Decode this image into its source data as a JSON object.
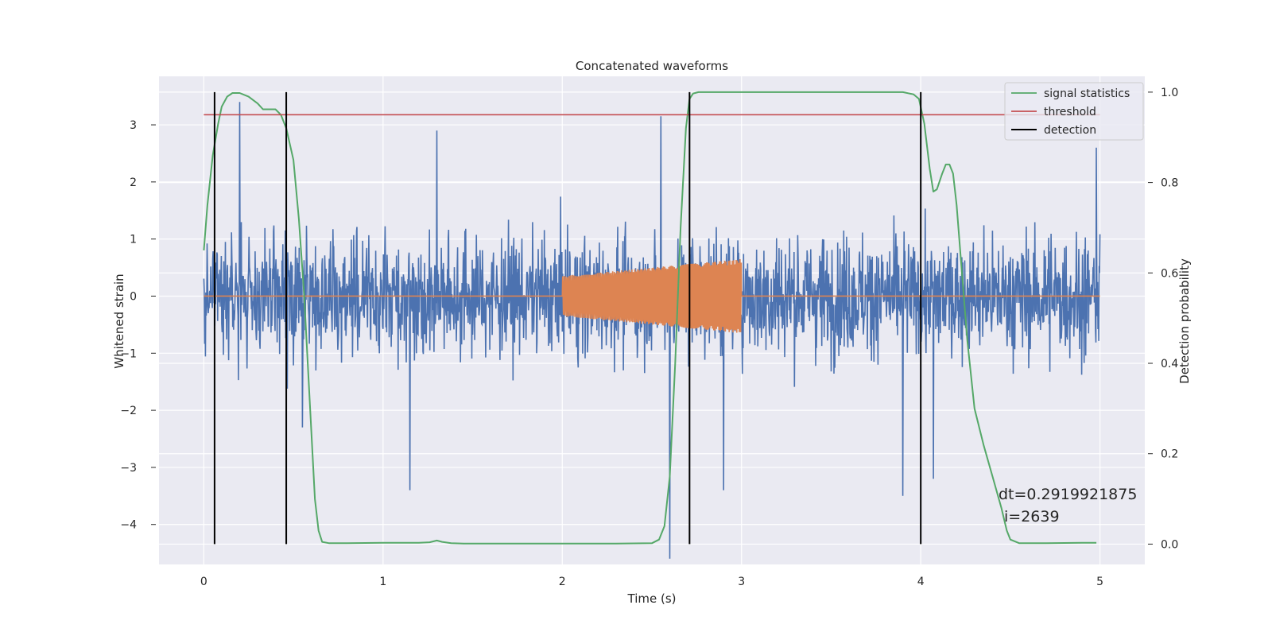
{
  "chart_data": {
    "type": "line",
    "title": "Concatenated waveforms",
    "xlabel": "Time (s)",
    "ylabel_left": "Whitened strain",
    "ylabel_right": "Detection probability",
    "xlim": [
      -0.25,
      5.25
    ],
    "ylim_left": [
      -4.7,
      3.85
    ],
    "ylim_right": [
      -0.045,
      1.035
    ],
    "x_ticks": [
      0,
      1,
      2,
      3,
      4,
      5
    ],
    "y_ticks_left": [
      -4,
      -3,
      -2,
      -1,
      0,
      1,
      2,
      3
    ],
    "y_ticks_right": [
      0.0,
      0.2,
      0.4,
      0.6,
      0.8,
      1.0
    ],
    "grid": true,
    "legend_position": "top-right",
    "colors": {
      "noise": "#4c72b0",
      "waveform": "#dd8452",
      "signal_statistics": "#55a868",
      "threshold": "#c44e52",
      "detection": "#000000",
      "axes_background": "#eaeaf2"
    },
    "series": [
      {
        "name": "signal statistics",
        "axis": "right",
        "x": [
          0.0,
          0.02,
          0.05,
          0.08,
          0.1,
          0.13,
          0.16,
          0.2,
          0.25,
          0.3,
          0.33,
          0.36,
          0.4,
          0.43,
          0.46,
          0.5,
          0.53,
          0.56,
          0.58,
          0.6,
          0.62,
          0.64,
          0.66,
          0.7,
          0.8,
          1.0,
          1.2,
          1.26,
          1.3,
          1.33,
          1.38,
          1.45,
          1.6,
          2.0,
          2.3,
          2.5,
          2.54,
          2.57,
          2.6,
          2.63,
          2.66,
          2.69,
          2.71,
          2.73,
          2.76,
          2.8,
          3.0,
          3.5,
          3.9,
          3.96,
          3.99,
          4.02,
          4.05,
          4.07,
          4.09,
          4.12,
          4.14,
          4.16,
          4.18,
          4.2,
          4.23,
          4.26,
          4.3,
          4.35,
          4.4,
          4.45,
          4.48,
          4.5,
          4.55,
          4.7,
          4.9,
          4.98
        ],
        "values": [
          0.65,
          0.75,
          0.86,
          0.93,
          0.968,
          0.99,
          0.998,
          0.998,
          0.99,
          0.975,
          0.962,
          0.962,
          0.962,
          0.95,
          0.92,
          0.85,
          0.72,
          0.55,
          0.4,
          0.25,
          0.1,
          0.03,
          0.005,
          0.002,
          0.002,
          0.003,
          0.003,
          0.004,
          0.008,
          0.005,
          0.002,
          0.001,
          0.001,
          0.001,
          0.001,
          0.002,
          0.01,
          0.04,
          0.15,
          0.4,
          0.7,
          0.92,
          0.985,
          0.997,
          1.0,
          1.0,
          1.0,
          1.0,
          1.0,
          0.995,
          0.985,
          0.93,
          0.83,
          0.78,
          0.785,
          0.82,
          0.84,
          0.84,
          0.82,
          0.75,
          0.6,
          0.45,
          0.3,
          0.22,
          0.15,
          0.08,
          0.03,
          0.01,
          0.002,
          0.002,
          0.003,
          0.003
        ]
      },
      {
        "name": "threshold",
        "axis": "right",
        "x": [
          0.0,
          5.0
        ],
        "values": [
          0.95,
          0.95
        ]
      },
      {
        "name": "detection",
        "axis": "right",
        "x_values": [
          0.06,
          0.46,
          2.71,
          4.0
        ],
        "range": [
          0.0,
          1.0
        ]
      },
      {
        "axis": "left",
        "x_range": [
          0.0,
          5.0
        ],
        "extreme_points": [
          {
            "x": 0.2,
            "y": 3.4
          },
          {
            "x": 0.55,
            "y": -2.3
          },
          {
            "x": 1.15,
            "y": -3.4
          },
          {
            "x": 1.3,
            "y": 2.9
          },
          {
            "x": 2.55,
            "y": 3.15
          },
          {
            "x": 2.6,
            "y": -4.6
          },
          {
            "x": 2.9,
            "y": -3.4
          },
          {
            "x": 3.9,
            "y": -3.5
          },
          {
            "x": 4.07,
            "y": -3.2
          },
          {
            "x": 4.98,
            "y": 2.6
          }
        ]
      },
      {
        "axis": "left",
        "x_range": [
          2.0,
          3.0
        ],
        "amplitude_start": 0.35,
        "amplitude_end": 0.65,
        "baseline_range": [
          0.0,
          5.0
        ]
      }
    ]
  },
  "legend": [
    "signal statistics",
    "threshold",
    "detection"
  ],
  "annotation": {
    "line1": "dt=0.2919921875",
    "line2": "i=2639"
  }
}
